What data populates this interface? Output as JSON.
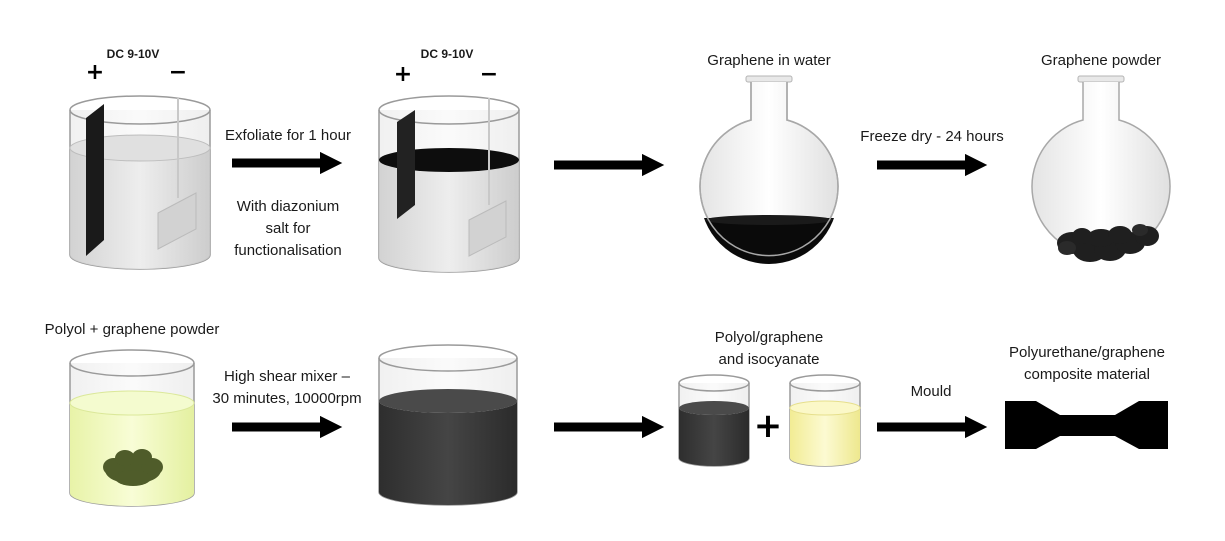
{
  "top_row": {
    "power_label_1": "DC 9-10V",
    "power_label_2": "DC 9-10V",
    "plus_sign": "+",
    "minus_sign": "−",
    "step1_line1": "Exfoliate for 1 hour",
    "step1_line2": "With diazonium",
    "step1_line3": "salt for",
    "step1_line4": "functionalisation",
    "flask1_label": "Graphene in water",
    "step3_label": "Freeze dry - 24 hours",
    "flask2_label": "Graphene powder"
  },
  "bottom_row": {
    "beaker1_label": "Polyol + graphene powder",
    "step1_line1": "High shear mixer –",
    "step1_line2": "30 minutes, 10000rpm",
    "mix_label_line1": "Polyol/graphene",
    "mix_label_line2": "and isocyanate",
    "plus_sign": "+",
    "mould_label": "Mould",
    "product_line1": "Polyurethane/graphene",
    "product_line2": "composite material"
  },
  "colors": {
    "graphene": "#111111",
    "dark_mix": "#3a3a3a",
    "polyol": "#eef7b6",
    "isocyanate": "#f7f3a8",
    "glass_outline": "#9a9a9a",
    "arrow": "#000000"
  }
}
